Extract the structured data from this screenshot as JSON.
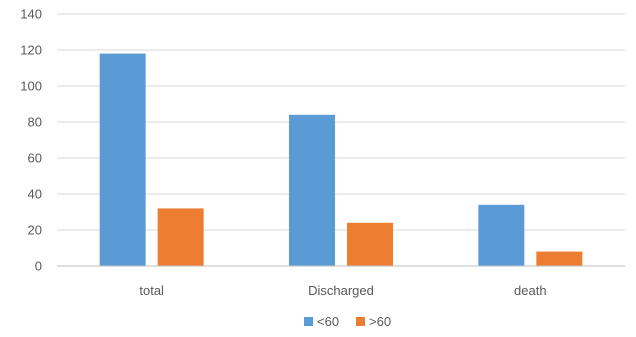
{
  "chart_data": {
    "type": "bar",
    "categories": [
      "total",
      "Discharged",
      "death"
    ],
    "series": [
      {
        "name": "<60",
        "values": [
          118,
          84,
          34
        ],
        "color": "#5B9BD5"
      },
      {
        "name": ">60",
        "values": [
          32,
          24,
          8
        ],
        "color": "#ED7D31"
      }
    ],
    "yticks": [
      0,
      20,
      40,
      60,
      80,
      100,
      120,
      140
    ],
    "ylim": [
      0,
      140
    ],
    "grid": true,
    "legend_position": "bottom",
    "gridline_color": "#D9D9D9"
  }
}
